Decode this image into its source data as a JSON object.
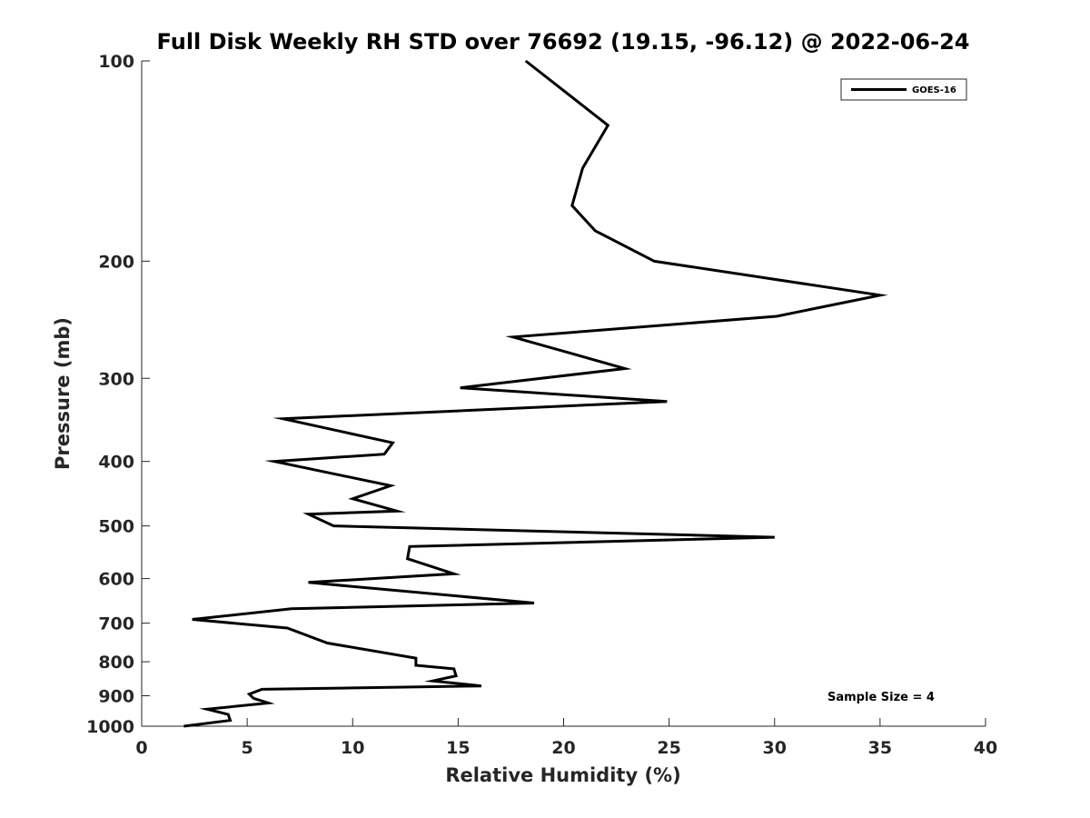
{
  "chart_data": {
    "type": "line",
    "title": "Full Disk Weekly RH STD over 76692 (19.15, -96.12) @ 2022-06-24",
    "xlabel": "Relative Humidity (%)",
    "ylabel": "Pressure (mb)",
    "xlim": [
      0,
      40
    ],
    "ylim": [
      100,
      1000
    ],
    "y_scale": "log",
    "y_reversed": true,
    "grid": false,
    "legend_position": "top-right",
    "xticks": [
      0,
      5,
      10,
      15,
      20,
      25,
      30,
      35,
      40
    ],
    "yticks": [
      100,
      200,
      300,
      400,
      500,
      600,
      700,
      800,
      900,
      1000
    ],
    "series": [
      {
        "name": "GOES-16",
        "color": "#000000",
        "x": [
          18.2,
          22.1,
          20.9,
          20.4,
          21.5,
          24.3,
          35.0,
          30.1,
          17.6,
          22.9,
          15.1,
          24.9,
          6.7,
          11.9,
          11.5,
          6.3,
          11.8,
          10.0,
          12.1,
          7.9,
          9.1,
          30.0,
          12.7,
          12.6,
          14.8,
          7.9,
          18.6,
          7.1,
          2.4,
          6.9,
          8.8,
          13.0,
          13.0,
          14.8,
          14.9,
          13.8,
          16.1,
          5.7,
          5.1,
          5.3,
          6.0,
          3.1,
          4.1,
          4.2,
          2.0
        ],
        "y": [
          100,
          125,
          145,
          165,
          180,
          200,
          225,
          242,
          260,
          290,
          310,
          325,
          345,
          375,
          390,
          400,
          435,
          455,
          475,
          480,
          500,
          520,
          537,
          560,
          590,
          608,
          653,
          666,
          691,
          712,
          750,
          790,
          810,
          820,
          840,
          855,
          870,
          880,
          895,
          908,
          923,
          943,
          960,
          980,
          1000
        ]
      }
    ],
    "annotations": [
      {
        "text": "Sample Size = 4"
      }
    ]
  }
}
